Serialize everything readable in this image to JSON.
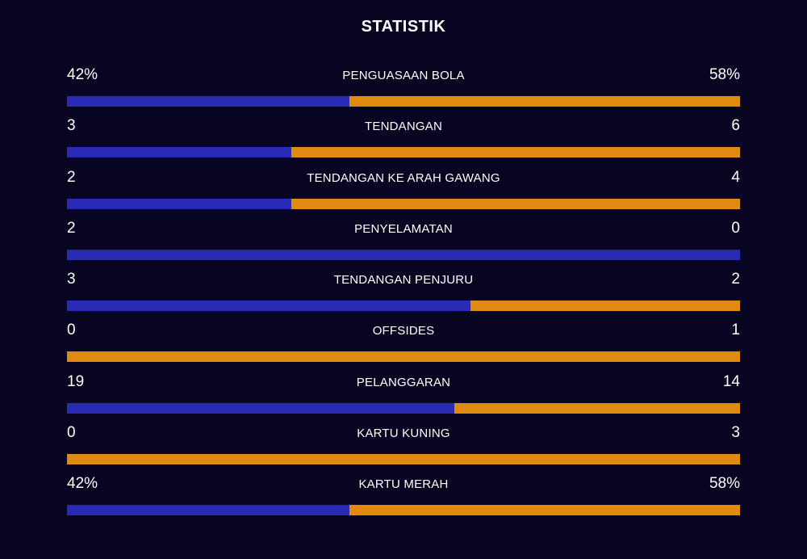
{
  "title": "STATISTIK",
  "colors": {
    "background": "#080522",
    "home": "#2a2bb5",
    "away": "#e08a12"
  },
  "stats": [
    {
      "label": "PENGUASAAN BOLA",
      "home": "42%",
      "away": "58%",
      "home_share": 0.42
    },
    {
      "label": "TENDANGAN",
      "home": "3",
      "away": "6",
      "home_share": 0.3333
    },
    {
      "label": "TENDANGAN KE ARAH GAWANG",
      "home": "2",
      "away": "4",
      "home_share": 0.3333
    },
    {
      "label": "PENYELAMATAN",
      "home": "2",
      "away": "0",
      "home_share": 1.0
    },
    {
      "label": "TENDANGAN PENJURU",
      "home": "3",
      "away": "2",
      "home_share": 0.6
    },
    {
      "label": "OFFSIDES",
      "home": "0",
      "away": "1",
      "home_share": 0.0
    },
    {
      "label": "PELANGGARAN",
      "home": "19",
      "away": "14",
      "home_share": 0.5758
    },
    {
      "label": "KARTU KUNING",
      "home": "0",
      "away": "3",
      "home_share": 0.0
    },
    {
      "label": "KARTU MERAH",
      "home": "42%",
      "away": "58%",
      "home_share": 0.42
    }
  ]
}
